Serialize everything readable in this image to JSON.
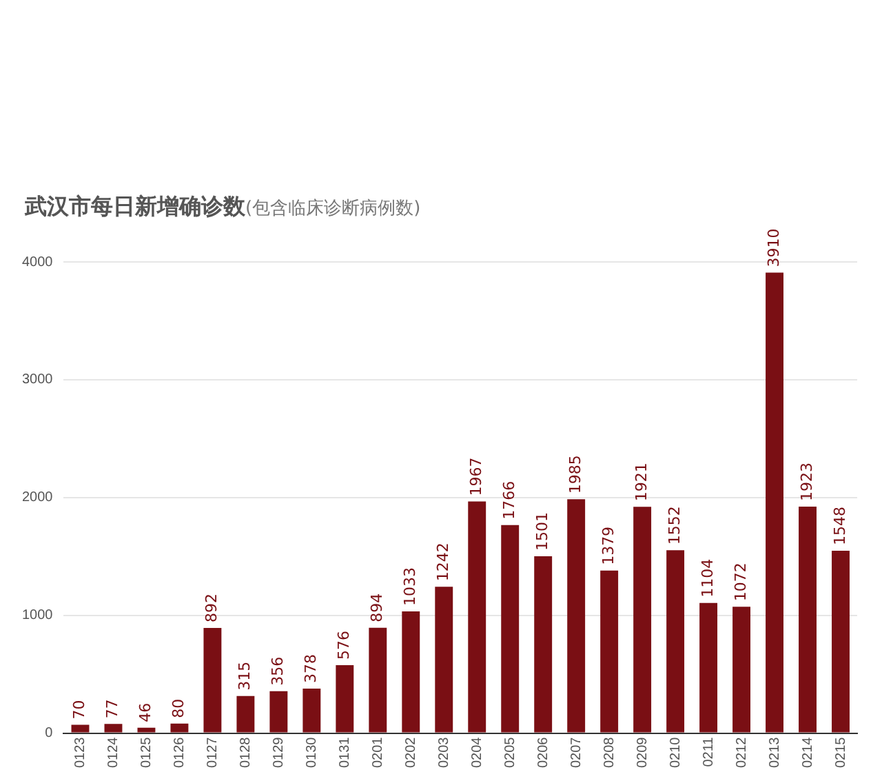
{
  "chart_data": {
    "type": "bar",
    "title": "武汉市每日新增确诊数",
    "subtitle": "(包含临床诊断病例数)",
    "categories": [
      "0123",
      "0124",
      "0125",
      "0126",
      "0127",
      "0128",
      "0129",
      "0130",
      "0131",
      "0201",
      "0202",
      "0203",
      "0204",
      "0205",
      "0206",
      "0207",
      "0208",
      "0209",
      "0210",
      "0211",
      "0212",
      "0213",
      "0214",
      "0215"
    ],
    "values": [
      70,
      77,
      46,
      80,
      892,
      315,
      356,
      378,
      576,
      894,
      1033,
      1242,
      1967,
      1766,
      1501,
      1985,
      1379,
      1921,
      1552,
      1104,
      1072,
      3910,
      1923,
      1548
    ],
    "color": "#7a0f14",
    "ylim": [
      0,
      4000
    ],
    "yticks": [
      0,
      1000,
      2000,
      3000,
      4000
    ],
    "grid": "y",
    "data_labels": true,
    "legend": false
  }
}
